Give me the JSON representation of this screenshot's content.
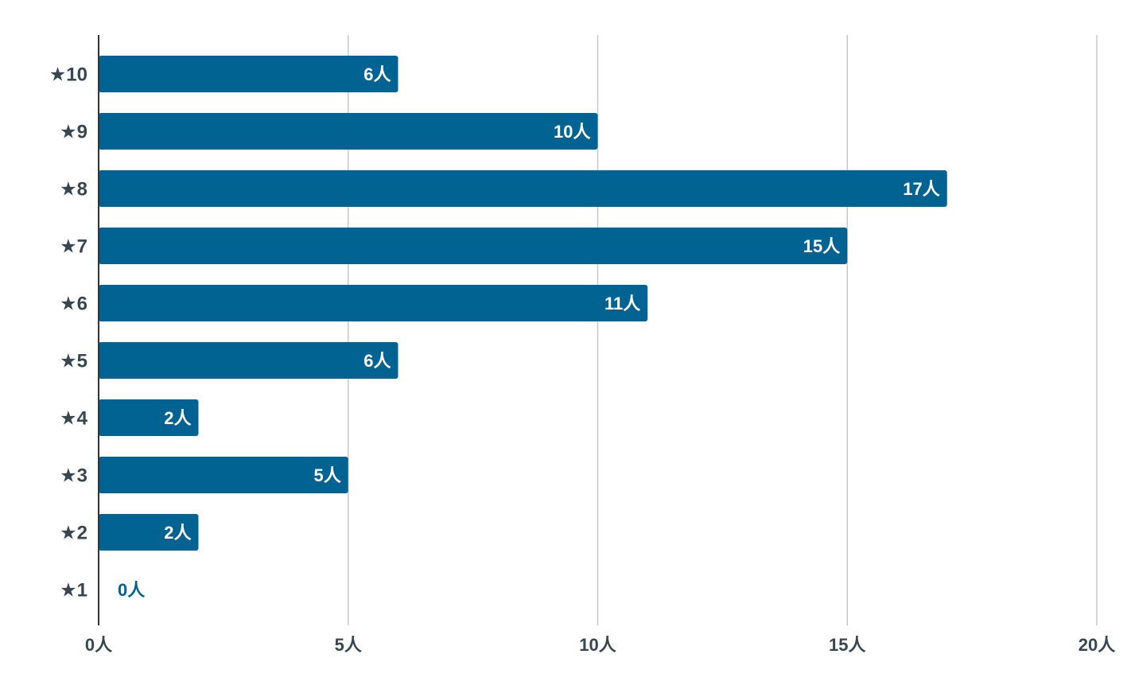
{
  "chart_data": {
    "type": "bar",
    "orientation": "horizontal",
    "categories": [
      "★10",
      "★9",
      "★8",
      "★7",
      "★6",
      "★5",
      "★4",
      "★3",
      "★2",
      "★1"
    ],
    "values": [
      6,
      10,
      17,
      15,
      11,
      6,
      2,
      5,
      2,
      0
    ],
    "data_labels": [
      "6人",
      "10人",
      "17人",
      "15人",
      "11人",
      "6人",
      "2人",
      "5人",
      "2人",
      "0人"
    ],
    "x_ticks": [
      0,
      5,
      10,
      15,
      20
    ],
    "x_tick_labels": [
      "0人",
      "5人",
      "10人",
      "15人",
      "20人"
    ],
    "xlim": [
      0,
      20
    ],
    "grid": true,
    "legend": "none",
    "title": "",
    "xlabel": "",
    "ylabel": "",
    "colors": {
      "bar": "#006391",
      "bar_label_inside": "#ffffff",
      "bar_label_outside": "#006391",
      "axis_text": "#37474f",
      "grid": "#c8c8c8",
      "axis_line": "#333333"
    }
  }
}
